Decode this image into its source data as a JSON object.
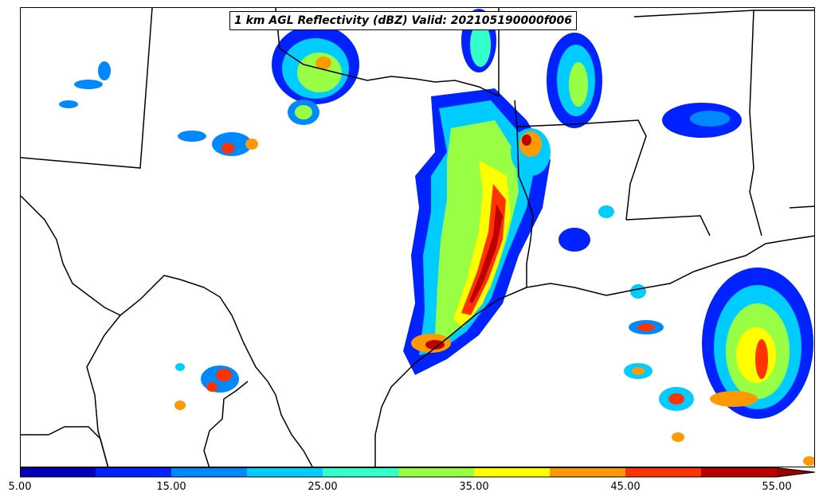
{
  "title": "1 km AGL Reflectivity (dBZ) Valid: 202105190000f006",
  "colorbar": {
    "colors": [
      "#0000bb",
      "#0022ff",
      "#0088ff",
      "#00ccff",
      "#33ffcc",
      "#99ff44",
      "#ffff00",
      "#ff9900",
      "#ff3300",
      "#bb0000"
    ],
    "extend_color": "#990000",
    "ticks": [
      "5.00",
      "15.00",
      "25.00",
      "35.00",
      "45.00",
      "55.00"
    ]
  },
  "map_style": {
    "border_color": "#000000",
    "background": "#ffffff"
  }
}
